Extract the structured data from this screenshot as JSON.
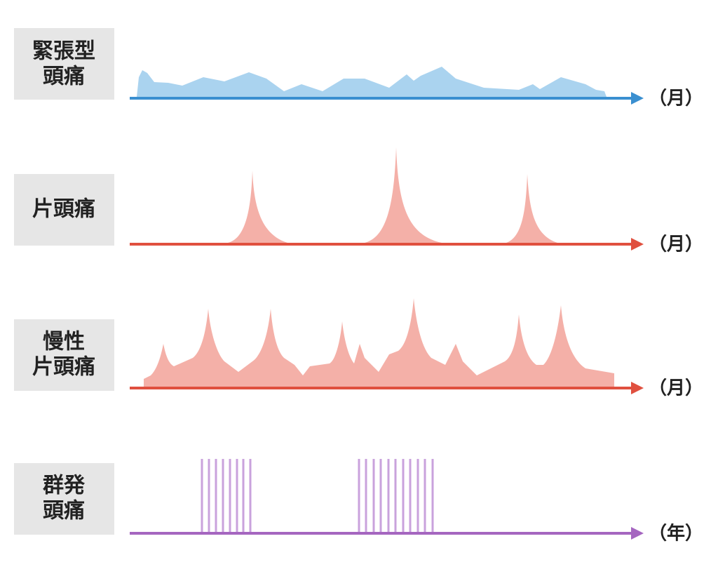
{
  "rows": [
    {
      "label": [
        "緊張型",
        "頭痛"
      ],
      "unit": "（月）"
    },
    {
      "label": [
        "片頭痛"
      ],
      "unit": "（月）"
    },
    {
      "label": [
        "慢性",
        "片頭痛"
      ],
      "unit": "（月）"
    },
    {
      "label": [
        "群発",
        "頭痛"
      ],
      "unit": "（年）"
    }
  ]
}
